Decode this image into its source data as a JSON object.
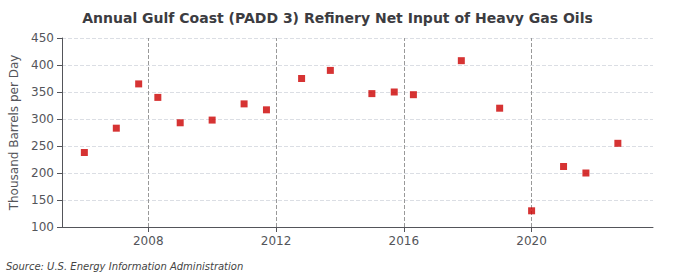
{
  "chart_data": {
    "type": "scatter",
    "title": "Annual Gulf Coast (PADD 3) Refinery Net Input of Heavy Gas Oils",
    "ylabel": "Thousand Barrels per Day",
    "annotations": [
      "Source: U.S. Energy Information Administration"
    ],
    "x": [
      2006,
      2007,
      2007.7,
      2008.3,
      2009,
      2010,
      2011,
      2011.7,
      2012.8,
      2013.7,
      2015,
      2015.7,
      2016.3,
      2017.8,
      2019,
      2020,
      2021,
      2021.7,
      2022.7
    ],
    "values": [
      238,
      283,
      365,
      340,
      293,
      298,
      328,
      317,
      375,
      390,
      347,
      350,
      345,
      408,
      320,
      130,
      212,
      200,
      255
    ],
    "color": "#cc0000",
    "marker": "square",
    "xlim": [
      2005.3,
      2023.8
    ],
    "xticks": [
      2008,
      2012,
      2016,
      2020
    ],
    "ylim": [
      100,
      450
    ],
    "yticks": [
      100,
      150,
      200,
      250,
      300,
      350,
      400,
      450
    ],
    "grid": true
  }
}
